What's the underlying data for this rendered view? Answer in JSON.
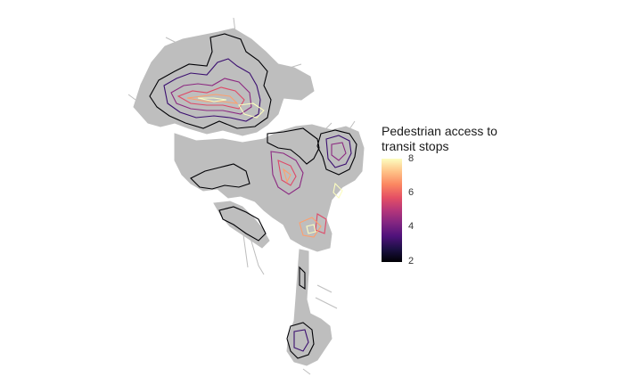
{
  "legend": {
    "title_line1": "Pedestrian access to",
    "title_line2": "transit stops",
    "scale_min": 2,
    "scale_max": 8,
    "ticks": [
      {
        "value": 8,
        "label": "8"
      },
      {
        "value": 6,
        "label": "6"
      },
      {
        "value": 4,
        "label": "4"
      },
      {
        "value": 2,
        "label": "2"
      }
    ],
    "colormap": [
      "#000004",
      "#1c1044",
      "#4f127b",
      "#812581",
      "#b5367a",
      "#e55064",
      "#fb8761",
      "#fec287",
      "#fcfdbf"
    ]
  },
  "map": {
    "network_color": "#bebebe",
    "contour_levels": [
      {
        "value": 2,
        "color": "#000004"
      },
      {
        "value": 3,
        "color": "#3b0f70"
      },
      {
        "value": 4,
        "color": "#8c2981"
      },
      {
        "value": 5,
        "color": "#de4968"
      },
      {
        "value": 6,
        "color": "#fe9f6d"
      },
      {
        "value": 7,
        "color": "#fcfdbf"
      }
    ]
  }
}
